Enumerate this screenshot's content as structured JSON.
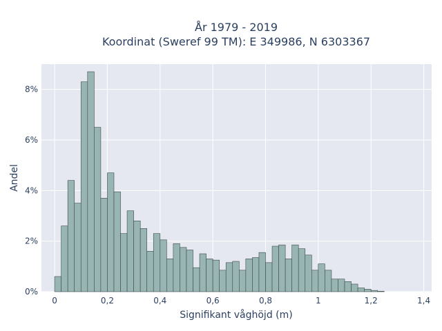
{
  "chart_data": {
    "type": "bar",
    "title_lines": [
      "År 1979 - 2019",
      "Koordinat (Sweref 99 TM): E 349986, N 6303367"
    ],
    "xlabel": "Signifikant våghöjd (m)",
    "ylabel": "Andel",
    "bin_width": 0.025,
    "x_start": 0.0125,
    "values": [
      0.6,
      2.6,
      4.4,
      3.5,
      8.3,
      8.7,
      6.5,
      3.7,
      4.7,
      3.95,
      2.3,
      3.2,
      2.8,
      2.5,
      1.6,
      2.3,
      2.05,
      1.3,
      1.9,
      1.75,
      1.65,
      0.95,
      1.5,
      1.3,
      1.25,
      0.85,
      1.15,
      1.2,
      0.85,
      1.3,
      1.35,
      1.55,
      1.15,
      1.8,
      1.85,
      1.3,
      1.85,
      1.7,
      1.45,
      0.85,
      1.1,
      0.85,
      0.5,
      0.5,
      0.4,
      0.3,
      0.15,
      0.1,
      0.05,
      0.02
    ],
    "xlim": [
      -0.05,
      1.43
    ],
    "ylim": [
      0,
      9.0
    ],
    "x_ticks": [
      0,
      0.2,
      0.4,
      0.6,
      0.8,
      1.0,
      1.2,
      1.4
    ],
    "x_tick_labels": [
      "0",
      "0,2",
      "0,4",
      "0,6",
      "0,8",
      "1",
      "1,2",
      "1,4"
    ],
    "y_ticks": [
      0,
      2,
      4,
      6,
      8
    ],
    "y_tick_labels": [
      "0%",
      "2%",
      "4%",
      "6%",
      "8%"
    ],
    "grid": true,
    "colors": {
      "bar": "#98b5b3",
      "bar_outline": "#3b4a48",
      "plot_bg": "#e5e8f0"
    }
  }
}
